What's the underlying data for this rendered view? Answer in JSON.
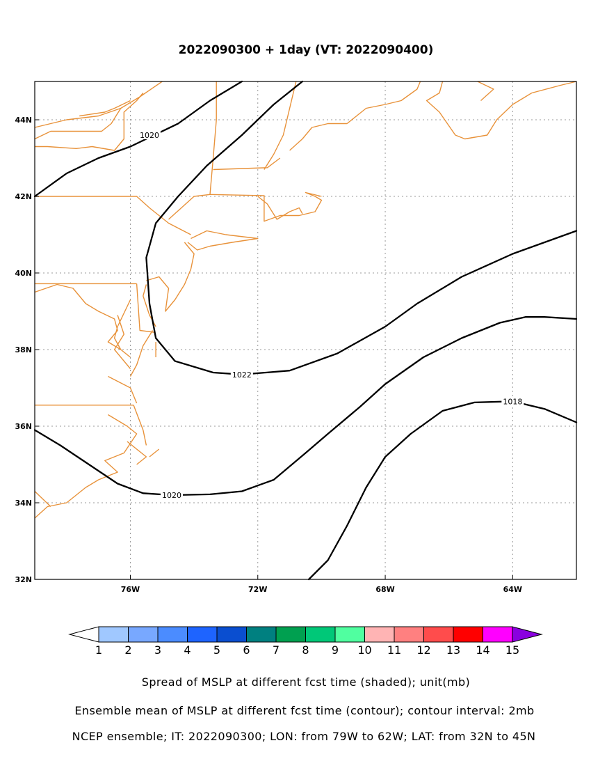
{
  "title": "2022090300 + 1day (VT: 2022090400)",
  "map": {
    "lon_range": [
      -79,
      -62
    ],
    "lat_range": [
      32,
      45
    ],
    "x_ticks": [
      {
        "value": -76,
        "label": "76W"
      },
      {
        "value": -72,
        "label": "72W"
      },
      {
        "value": -68,
        "label": "68W"
      },
      {
        "value": -64,
        "label": "64W"
      }
    ],
    "y_ticks": [
      {
        "value": 44,
        "label": "44N"
      },
      {
        "value": 42,
        "label": "42N"
      },
      {
        "value": 40,
        "label": "40N"
      },
      {
        "value": 38,
        "label": "38N"
      },
      {
        "value": 36,
        "label": "36N"
      },
      {
        "value": 34,
        "label": "34N"
      },
      {
        "value": 32,
        "label": "32N"
      }
    ],
    "grid": "dotted",
    "coastline_color": "#e8923a",
    "contour_color": "#000000",
    "contours": [
      {
        "level": "1020",
        "points": [
          [
            -79,
            42
          ],
          [
            -78,
            42.6
          ],
          [
            -77,
            43
          ],
          [
            -76,
            43.3
          ],
          [
            -74.5,
            43.9
          ],
          [
            -73.5,
            44.5
          ],
          [
            -72.5,
            45
          ]
        ],
        "label_at": [
          -75.4,
          43.6
        ]
      },
      {
        "level": "1022",
        "points": [
          [
            -70.6,
            45
          ],
          [
            -71.5,
            44.4
          ],
          [
            -72.5,
            43.6
          ],
          [
            -73.6,
            42.8
          ],
          [
            -74.5,
            42
          ],
          [
            -75.2,
            41.3
          ],
          [
            -75.5,
            40.4
          ],
          [
            -75.4,
            39.2
          ],
          [
            -75.2,
            38.3
          ],
          [
            -74.6,
            37.7
          ],
          [
            -73.4,
            37.4
          ],
          [
            -72.5,
            37.35
          ],
          [
            -71,
            37.45
          ],
          [
            -69.5,
            37.9
          ],
          [
            -68,
            38.6
          ],
          [
            -67,
            39.2
          ],
          [
            -65.6,
            39.9
          ],
          [
            -64,
            40.5
          ],
          [
            -62,
            41.1
          ]
        ],
        "label_at": [
          -72.5,
          37.35
        ]
      },
      {
        "level": "1020",
        "points": [
          [
            -79,
            35.9
          ],
          [
            -78.2,
            35.5
          ],
          [
            -77.3,
            35
          ],
          [
            -76.4,
            34.5
          ],
          [
            -75.6,
            34.25
          ],
          [
            -74.7,
            34.2
          ],
          [
            -73.5,
            34.22
          ],
          [
            -72.5,
            34.3
          ],
          [
            -71.5,
            34.6
          ],
          [
            -70.5,
            35.3
          ],
          [
            -69.8,
            35.8
          ],
          [
            -68.8,
            36.5
          ],
          [
            -68,
            37.1
          ],
          [
            -66.8,
            37.8
          ],
          [
            -65.6,
            38.3
          ],
          [
            -64.4,
            38.7
          ],
          [
            -63.6,
            38.85
          ],
          [
            -63,
            38.85
          ],
          [
            -62,
            38.8
          ]
        ],
        "label_at": [
          -74.7,
          34.2
        ]
      },
      {
        "level": "1018",
        "points": [
          [
            -70.4,
            32
          ],
          [
            -69.8,
            32.5
          ],
          [
            -69.2,
            33.4
          ],
          [
            -68.6,
            34.4
          ],
          [
            -68,
            35.2
          ],
          [
            -67.2,
            35.8
          ],
          [
            -66.2,
            36.4
          ],
          [
            -65.2,
            36.62
          ],
          [
            -64,
            36.65
          ],
          [
            -63,
            36.45
          ],
          [
            -62,
            36.1
          ]
        ],
        "label_at": [
          -64,
          36.65
        ]
      }
    ],
    "coastlines": [
      [
        [
          -79,
          43.8
        ],
        [
          -78,
          44
        ],
        [
          -77,
          44.1
        ],
        [
          -76.3,
          44.3
        ],
        [
          -75.7,
          44.6
        ],
        [
          -75,
          45
        ]
      ],
      [
        [
          -79,
          43.3
        ],
        [
          -78.6,
          43.3
        ],
        [
          -77.7,
          43.25
        ],
        [
          -77.2,
          43.3
        ],
        [
          -76.5,
          43.2
        ],
        [
          -76.2,
          43.5
        ],
        [
          -76.2,
          44.2
        ],
        [
          -75.8,
          44.5
        ],
        [
          -75.6,
          44.7
        ]
      ],
      [
        [
          -77.6,
          44.1
        ],
        [
          -76.8,
          44.2
        ],
        [
          -76.5,
          44.3
        ],
        [
          -76,
          44.5
        ]
      ],
      [
        [
          -79,
          43.5
        ],
        [
          -78.5,
          43.7
        ],
        [
          -77.5,
          43.7
        ],
        [
          -76.9,
          43.7
        ],
        [
          -76.6,
          43.9
        ],
        [
          -76.3,
          44.3
        ]
      ],
      [
        [
          -79,
          42
        ],
        [
          -75.8,
          42
        ],
        [
          -75.4,
          41.7
        ],
        [
          -74.8,
          41.3
        ],
        [
          -74.1,
          41.0
        ]
      ],
      [
        [
          -79,
          39.72
        ],
        [
          -75.8,
          39.72
        ]
      ],
      [
        [
          -75.8,
          39.72
        ],
        [
          -75.7,
          38.5
        ],
        [
          -75.25,
          38.45
        ]
      ],
      [
        [
          -79,
          39.5
        ],
        [
          -78.3,
          39.7
        ],
        [
          -77.8,
          39.6
        ],
        [
          -77.4,
          39.2
        ],
        [
          -77.0,
          39.0
        ],
        [
          -76.5,
          38.8
        ],
        [
          -76.4,
          38.5
        ],
        [
          -76.7,
          38.2
        ],
        [
          -76.3,
          38
        ]
      ],
      [
        [
          -76.0,
          39.3
        ],
        [
          -76.4,
          38.6
        ],
        [
          -76.5,
          38.3
        ],
        [
          -76.3,
          38.0
        ],
        [
          -76.0,
          37.8
        ]
      ],
      [
        [
          -75.2,
          38.6
        ],
        [
          -75.4,
          38.9
        ],
        [
          -75.6,
          39.4
        ],
        [
          -75.5,
          39.7
        ]
      ],
      [
        [
          -75.5,
          39.8
        ],
        [
          -75.1,
          39.9
        ],
        [
          -74.8,
          39.6
        ],
        [
          -74.9,
          39.0
        ],
        [
          -74.6,
          39.3
        ],
        [
          -74.3,
          39.7
        ],
        [
          -74.1,
          40.1
        ],
        [
          -74.0,
          40.5
        ],
        [
          -74.3,
          40.8
        ]
      ],
      [
        [
          -75.3,
          38.5
        ],
        [
          -75.6,
          38.1
        ],
        [
          -75.8,
          37.6
        ],
        [
          -76.0,
          37.3
        ]
      ],
      [
        [
          -76.4,
          38.9
        ],
        [
          -76.2,
          38.4
        ],
        [
          -76.5,
          38.0
        ],
        [
          -76.0,
          37.5
        ]
      ],
      [
        [
          -79,
          36.55
        ],
        [
          -75.9,
          36.55
        ]
      ],
      [
        [
          -75.9,
          36.55
        ],
        [
          -75.6,
          35.9
        ],
        [
          -75.5,
          35.5
        ]
      ],
      [
        [
          -76.7,
          37.3
        ],
        [
          -76.0,
          37.0
        ],
        [
          -75.8,
          36.6
        ]
      ],
      [
        [
          -76.7,
          36.3
        ],
        [
          -76.1,
          36.0
        ],
        [
          -75.8,
          35.8
        ],
        [
          -76.2,
          35.3
        ],
        [
          -76.8,
          35.1
        ],
        [
          -76.4,
          34.8
        ],
        [
          -77.0,
          34.6
        ],
        [
          -77.4,
          34.4
        ],
        [
          -78,
          34.0
        ],
        [
          -78.6,
          33.9
        ],
        [
          -79,
          33.6
        ]
      ],
      [
        [
          -76.1,
          35.6
        ],
        [
          -75.5,
          35.2
        ],
        [
          -75.8,
          35.0
        ]
      ],
      [
        [
          -79,
          34.3
        ],
        [
          -78.5,
          33.9
        ]
      ],
      [
        [
          -74.2,
          40.8
        ],
        [
          -73.9,
          40.6
        ],
        [
          -73.5,
          40.7
        ],
        [
          -72.8,
          40.8
        ],
        [
          -72.0,
          40.9
        ],
        [
          -73.0,
          41.0
        ],
        [
          -73.6,
          41.1
        ],
        [
          -74.1,
          40.9
        ]
      ],
      [
        [
          -74.8,
          41.4
        ],
        [
          -74.0,
          42.0
        ],
        [
          -73.5,
          42.05
        ],
        [
          -73.4,
          43.0
        ],
        [
          -73.3,
          44.0
        ],
        [
          -73.3,
          45
        ]
      ],
      [
        [
          -73.4,
          42.7
        ],
        [
          -71.7,
          42.75
        ],
        [
          -71.3,
          43.0
        ]
      ],
      [
        [
          -73.5,
          42.05
        ],
        [
          -71.8,
          42.02
        ],
        [
          -71.8,
          41.35
        ],
        [
          -71.3,
          41.5
        ],
        [
          -70.7,
          41.5
        ],
        [
          -70.2,
          41.6
        ],
        [
          -70.0,
          41.9
        ],
        [
          -70.2,
          42.0
        ],
        [
          -70.5,
          42.1
        ],
        [
          -70.0,
          42.0
        ]
      ],
      [
        [
          -71.8,
          42.7
        ],
        [
          -71.5,
          43.1
        ],
        [
          -71.2,
          43.6
        ],
        [
          -71.0,
          44.3
        ],
        [
          -70.8,
          45
        ]
      ],
      [
        [
          -71.0,
          43.2
        ],
        [
          -70.6,
          43.5
        ],
        [
          -70.3,
          43.8
        ],
        [
          -69.8,
          43.9
        ],
        [
          -69.2,
          43.9
        ],
        [
          -68.6,
          44.3
        ],
        [
          -68.0,
          44.4
        ],
        [
          -67.5,
          44.5
        ],
        [
          -67.0,
          44.8
        ],
        [
          -66.9,
          45
        ]
      ],
      [
        [
          -72.0,
          42.0
        ],
        [
          -71.7,
          41.8
        ],
        [
          -71.4,
          41.4
        ],
        [
          -71.0,
          41.6
        ],
        [
          -70.7,
          41.7
        ],
        [
          -70.6,
          41.55
        ]
      ],
      [
        [
          -66.2,
          45
        ],
        [
          -66.3,
          44.7
        ],
        [
          -66.7,
          44.5
        ],
        [
          -66.3,
          44.2
        ],
        [
          -65.8,
          43.6
        ],
        [
          -65.5,
          43.5
        ],
        [
          -64.8,
          43.6
        ],
        [
          -64.5,
          44
        ],
        [
          -64.0,
          44.4
        ],
        [
          -63.6,
          44.6
        ],
        [
          -63.4,
          44.7
        ],
        [
          -62.5,
          44.9
        ],
        [
          -62,
          45
        ]
      ],
      [
        [
          -65.1,
          45
        ],
        [
          -64.6,
          44.8
        ],
        [
          -65.0,
          44.5
        ]
      ],
      [
        [
          -75.2,
          38.2
        ],
        [
          -75.2,
          37.8
        ]
      ],
      [
        [
          -75.1,
          35.4
        ],
        [
          -75.4,
          35.2
        ]
      ]
    ]
  },
  "colorbar": {
    "ticks": [
      "1",
      "2",
      "3",
      "4",
      "5",
      "6",
      "7",
      "8",
      "9",
      "10",
      "11",
      "12",
      "13",
      "14",
      "15"
    ],
    "colors": [
      "#a0c8ff",
      "#78a8ff",
      "#4b8cff",
      "#1e64ff",
      "#0a4ed0",
      "#008080",
      "#00a050",
      "#00c878",
      "#50ffa0",
      "#ffb4b4",
      "#ff8080",
      "#ff4c4c",
      "#ff0000",
      "#ff00ff",
      "#8a00e0"
    ]
  },
  "captions": [
    "Spread of MSLP at different fcst time (shaded); unit(mb)",
    "Ensemble mean of MSLP at different fcst time (contour); contour interval: 2mb",
    "NCEP ensemble; IT: 2022090300; LON: from 79W to 62W; LAT: from 32N to 45N"
  ]
}
